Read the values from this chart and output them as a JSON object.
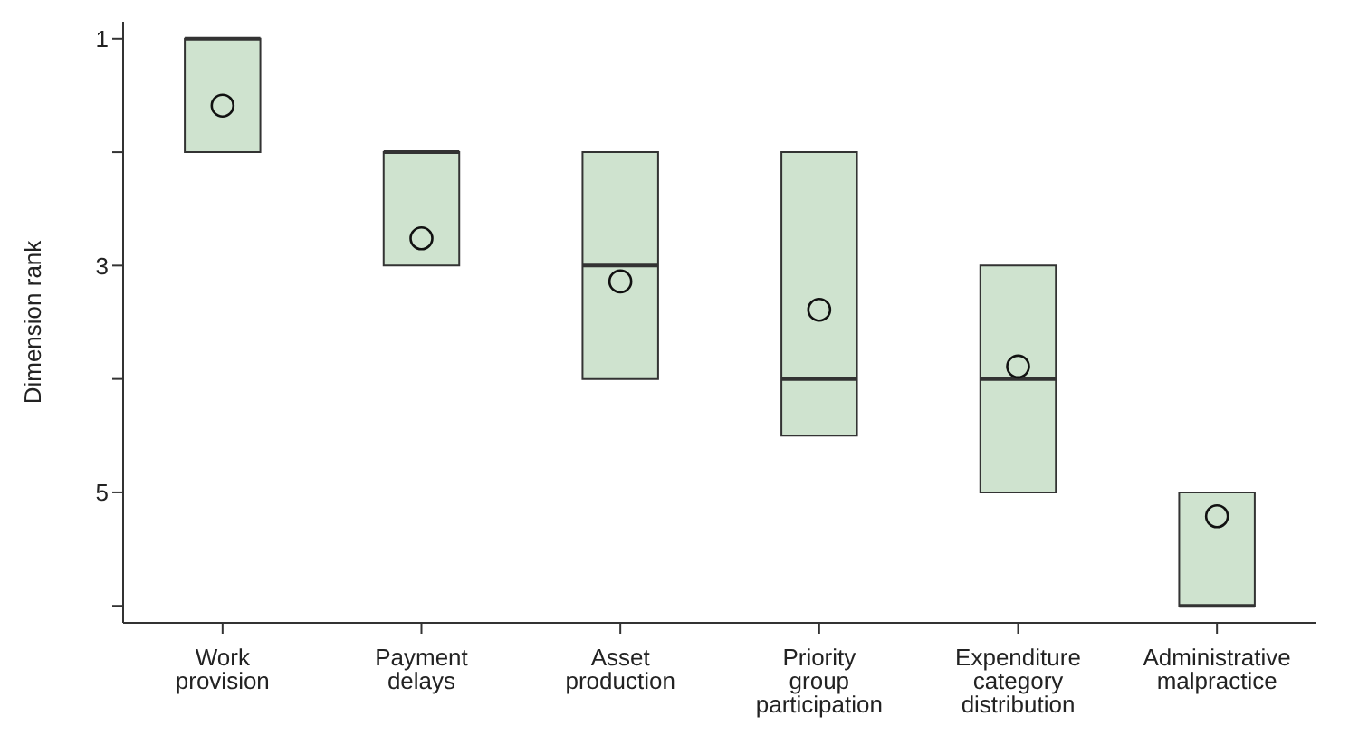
{
  "chart_data": {
    "type": "box",
    "ylabel": "Dimension rank",
    "categories": [
      "Work provision",
      "Payment delays",
      "Asset production",
      "Priority group participation",
      "Expenditure category distribution",
      "Administrative malpractice"
    ],
    "boxes": [
      {
        "low": 1,
        "q1": 1,
        "median": 1,
        "q3": 2,
        "high": 2,
        "mean": 1.59
      },
      {
        "low": 2,
        "q1": 2,
        "median": 2,
        "q3": 3,
        "high": 3,
        "mean": 2.76
      },
      {
        "low": 2,
        "q1": 2,
        "median": 3,
        "q3": 4,
        "high": 4,
        "mean": 3.14
      },
      {
        "low": 2,
        "q1": 2,
        "median": 4,
        "q3": 4.5,
        "high": 4.5,
        "mean": 3.39
      },
      {
        "low": 3,
        "q1": 3,
        "median": 4,
        "q3": 5,
        "high": 5,
        "mean": 3.89
      },
      {
        "low": 5,
        "q1": 5,
        "median": 6,
        "q3": 6,
        "high": 6,
        "mean": 5.21
      }
    ],
    "color": "#cfe3cf",
    "marker": "circle",
    "grid": false,
    "ylim": [
      6.15,
      0.85
    ],
    "yticks": [
      1,
      {
        "value": 2,
        "label": null
      },
      3,
      {
        "value": 4,
        "label": null
      },
      5,
      {
        "value": 6,
        "label": null
      }
    ]
  }
}
